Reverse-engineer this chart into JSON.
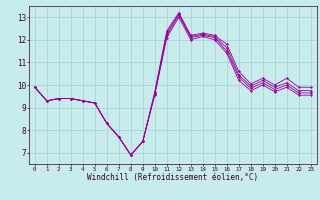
{
  "xlabel": "Windchill (Refroidissement éolien,°C)",
  "bg_color": "#c8ecec",
  "grid_color": "#aad4d4",
  "line_color": "#990099",
  "xlim": [
    -0.5,
    23.5
  ],
  "ylim": [
    6.5,
    13.5
  ],
  "yticks": [
    7,
    8,
    9,
    10,
    11,
    12,
    13
  ],
  "xticks": [
    0,
    1,
    2,
    3,
    4,
    5,
    6,
    7,
    8,
    9,
    10,
    11,
    12,
    13,
    14,
    15,
    16,
    17,
    18,
    19,
    20,
    21,
    22,
    23
  ],
  "lines": [
    [
      9.9,
      9.3,
      9.4,
      9.4,
      9.3,
      9.2,
      8.3,
      7.7,
      6.9,
      7.5,
      9.7,
      12.4,
      13.2,
      12.2,
      12.3,
      12.2,
      11.8,
      10.6,
      10.05,
      10.3,
      10.0,
      10.3,
      9.9,
      9.9
    ],
    [
      9.9,
      9.3,
      9.4,
      9.4,
      9.3,
      9.2,
      8.3,
      7.7,
      6.9,
      7.5,
      9.65,
      12.3,
      13.15,
      12.15,
      12.25,
      12.15,
      11.65,
      10.45,
      9.95,
      10.2,
      9.9,
      10.1,
      9.75,
      9.75
    ],
    [
      9.9,
      9.3,
      9.4,
      9.4,
      9.3,
      9.2,
      8.3,
      7.7,
      6.9,
      7.5,
      9.6,
      12.2,
      13.1,
      12.1,
      12.2,
      12.1,
      11.5,
      10.35,
      9.85,
      10.1,
      9.8,
      10.0,
      9.65,
      9.65
    ],
    [
      9.9,
      9.3,
      9.4,
      9.4,
      9.3,
      9.2,
      8.3,
      7.7,
      6.9,
      7.5,
      9.55,
      12.1,
      13.0,
      12.0,
      12.15,
      12.0,
      11.4,
      10.2,
      9.75,
      10.0,
      9.7,
      9.9,
      9.55,
      9.55
    ]
  ]
}
